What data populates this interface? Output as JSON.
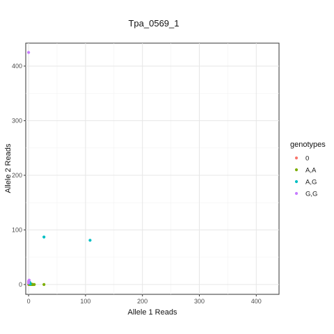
{
  "chart_data": {
    "type": "scatter",
    "title": "Tpa_0569_1",
    "xlabel": "Allele 1 Reads",
    "ylabel": "Allele 2 Reads",
    "xlim": [
      -5,
      440
    ],
    "ylim": [
      -18,
      442
    ],
    "xticks": [
      0,
      100,
      200,
      300,
      400
    ],
    "yticks": [
      0,
      100,
      200,
      300,
      400
    ],
    "grid": true,
    "legend": {
      "title": "genotypes",
      "placement": "right"
    },
    "series": [
      {
        "name": "0",
        "color": "#F8766D",
        "points": [
          [
            0,
            0
          ],
          [
            1,
            1
          ],
          [
            2,
            0
          ]
        ]
      },
      {
        "name": "A,A",
        "color": "#7CAE00",
        "points": [
          [
            1,
            0
          ],
          [
            2,
            1
          ],
          [
            3,
            0
          ],
          [
            4,
            0
          ],
          [
            5,
            1
          ],
          [
            6,
            0
          ],
          [
            7,
            0
          ],
          [
            8,
            0
          ],
          [
            10,
            0
          ],
          [
            27,
            0
          ]
        ]
      },
      {
        "name": "A,G",
        "color": "#00BFC4",
        "points": [
          [
            1,
            2
          ],
          [
            2,
            4
          ],
          [
            3,
            1
          ],
          [
            27,
            87
          ],
          [
            108,
            81
          ]
        ]
      },
      {
        "name": "G,G",
        "color": "#C77CFF",
        "points": [
          [
            0,
            425
          ],
          [
            0,
            6
          ],
          [
            1,
            8
          ],
          [
            0,
            3
          ]
        ]
      }
    ]
  }
}
